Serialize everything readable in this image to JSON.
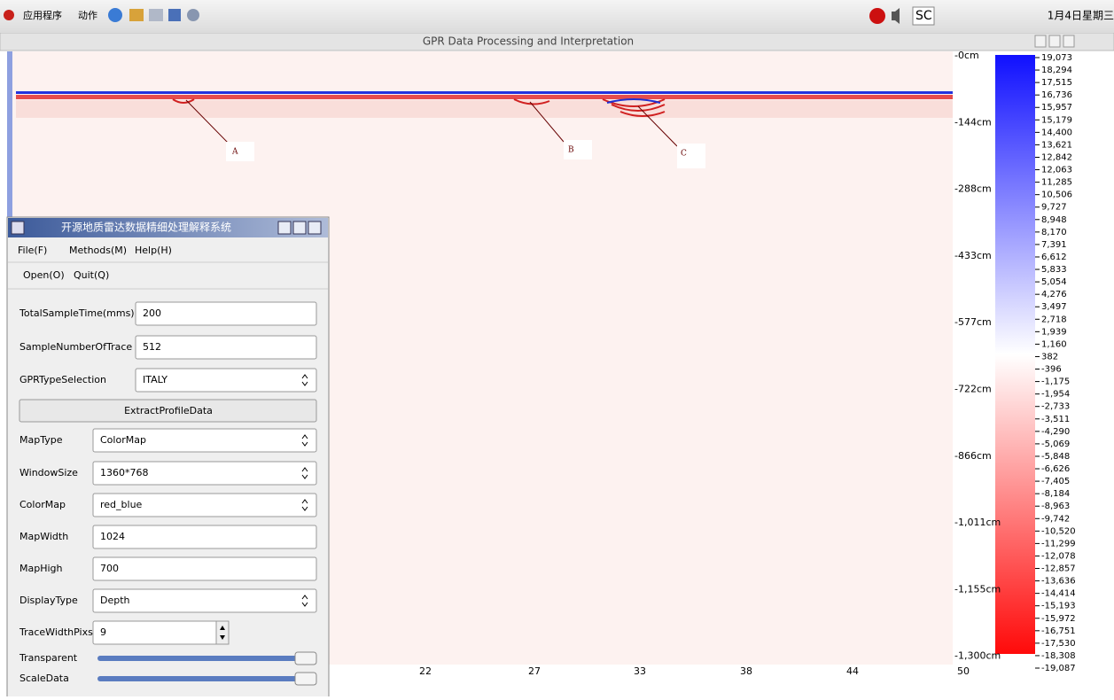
{
  "top_bar": {
    "menu_items": [
      "应用程序",
      "动作"
    ],
    "tray_text": "SC",
    "clock": "1月4日星期三"
  },
  "window": {
    "title": "GPR Data Processing and Interpretation"
  },
  "profile": {
    "annotations": [
      "A",
      "B",
      "C"
    ],
    "depth_labels": [
      "-0cm",
      "-144cm",
      "-288cm",
      "-433cm",
      "-577cm",
      "-722cm",
      "-866cm",
      "-1,011cm",
      "-1,155cm",
      "-1,300cm"
    ],
    "trace_labels": [
      "22",
      "27",
      "33",
      "38",
      "44",
      "50"
    ],
    "colorbar_labels": [
      "19,073",
      "18,294",
      "17,515",
      "16,736",
      "15,957",
      "15,179",
      "14,400",
      "13,621",
      "12,842",
      "12,063",
      "11,285",
      "10,506",
      "9,727",
      "8,948",
      "8,170",
      "7,391",
      "6,612",
      "5,833",
      "5,054",
      "4,276",
      "3,497",
      "2,718",
      "1,939",
      "1,160",
      "382",
      "-396",
      "-1,175",
      "-1,954",
      "-2,733",
      "-3,511",
      "-4,290",
      "-5,069",
      "-5,848",
      "-6,626",
      "-7,405",
      "-8,184",
      "-8,963",
      "-9,742",
      "-10,520",
      "-11,299",
      "-12,078",
      "-12,857",
      "-13,636",
      "-14,414",
      "-15,193",
      "-15,972",
      "-16,751",
      "-17,530",
      "-18,308",
      "-19,087"
    ]
  },
  "dialog": {
    "title": "开源地质雷达数据精细处理解释系统",
    "menu": [
      "File(F)",
      "Methods(M)",
      "Help(H)"
    ],
    "toolbar": [
      "Open(O)",
      "Quit(Q)"
    ],
    "fields": [
      {
        "label": "TotalSampleTime(mms)",
        "value": "200"
      },
      {
        "label": "SampleNumberOfTrace",
        "value": "512"
      },
      {
        "label": "GPRTypeSelection",
        "value": "ITALY"
      },
      {
        "label": "MapType",
        "value": "ColorMap"
      },
      {
        "label": "WindowSize",
        "value": "1360*768"
      },
      {
        "label": "ColorMap",
        "value": "red_blue"
      },
      {
        "label": "MapWidth",
        "value": "1024"
      },
      {
        "label": "MapHigh",
        "value": "700"
      },
      {
        "label": "DisplayType",
        "value": "Depth"
      },
      {
        "label": "TraceWidthPixs",
        "value": "9"
      }
    ],
    "button": "ExtractProfileData",
    "sliders": [
      "Transparent",
      "ScaleData"
    ]
  }
}
